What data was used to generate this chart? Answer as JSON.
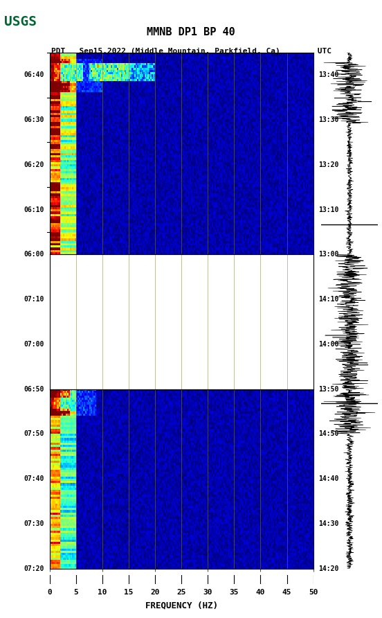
{
  "title_line1": "MMNB DP1 BP 40",
  "title_line2": "PDT   Sep15,2022 (Middle Mountain, Parkfield, Ca)        UTC",
  "xlabel": "FREQUENCY (HZ)",
  "freq_min": 0,
  "freq_max": 50,
  "freq_ticks": [
    0,
    5,
    10,
    15,
    20,
    25,
    30,
    35,
    40,
    45,
    50
  ],
  "left_time_labels_seg1": [
    "06:00",
    "06:10",
    "06:20",
    "06:30",
    "06:40"
  ],
  "left_time_labels_gap": [
    "06:50",
    "07:00",
    "07:10"
  ],
  "left_time_labels_seg2": [
    "07:20",
    "07:30",
    "07:40",
    "07:50"
  ],
  "right_time_labels_seg1": [
    "13:00",
    "13:10",
    "13:20",
    "13:30",
    "13:40"
  ],
  "right_time_labels_gap": [
    "13:50",
    "14:00",
    "14:10"
  ],
  "right_time_labels_seg2": [
    "14:20",
    "14:30",
    "14:40",
    "14:50"
  ],
  "bg_color": "#ffffff",
  "gap_color": "#ffffff",
  "spectrogram_bg": "#000080",
  "grid_color": "#808040",
  "waveform_color": "#000000",
  "usgs_green": "#006633"
}
